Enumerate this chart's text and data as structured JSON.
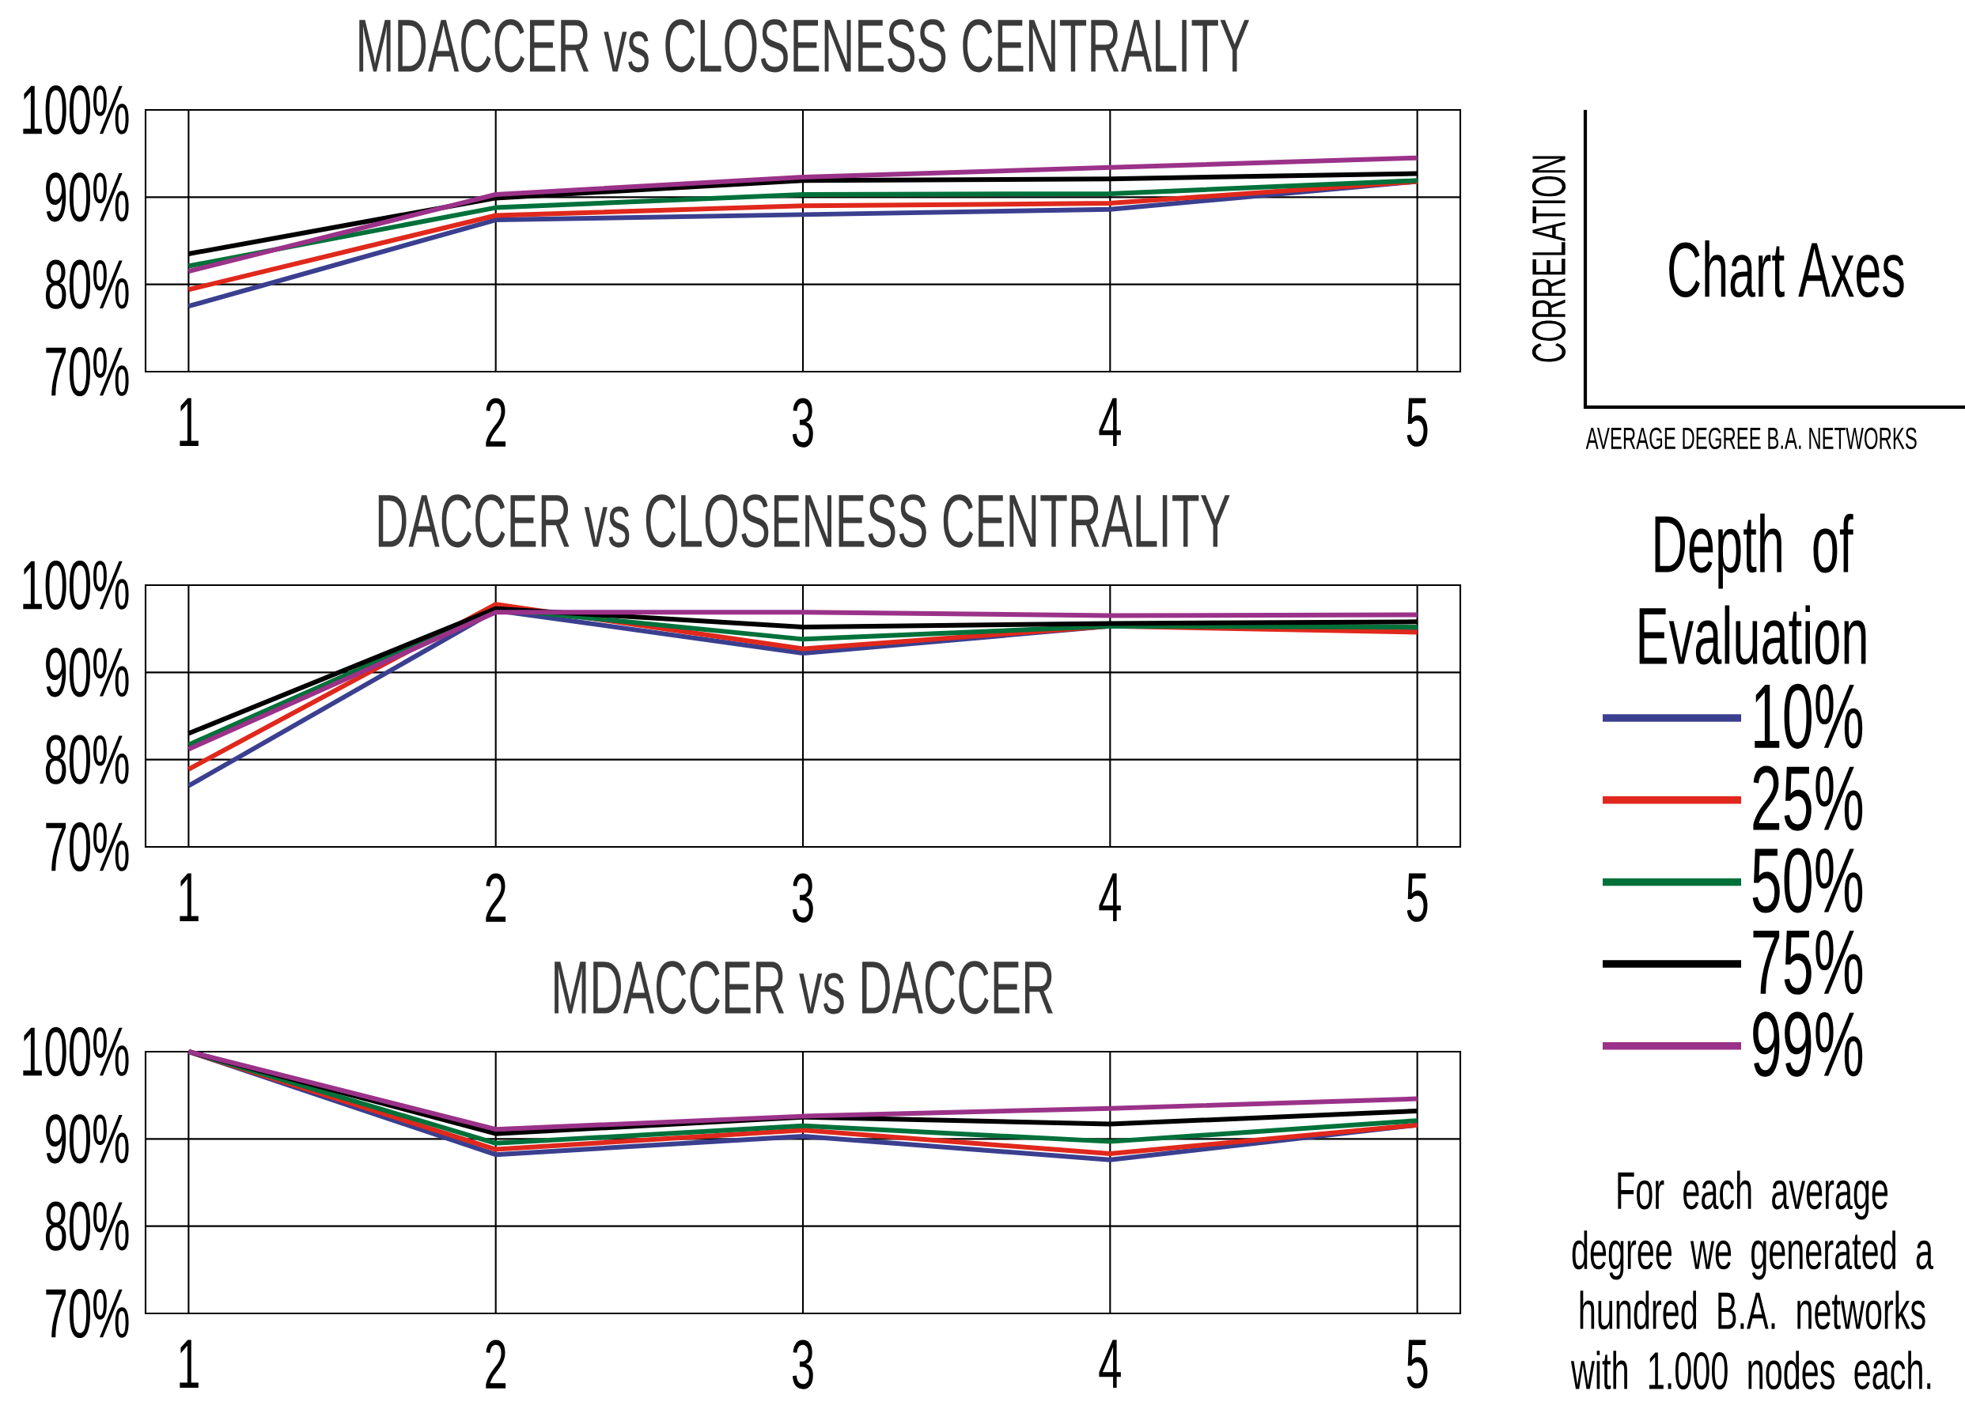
{
  "chart_data": [
    {
      "type": "line",
      "title": "MDACCER vs CLOSENESS CENTRALITY",
      "categories": [
        "1",
        "2",
        "3",
        "4",
        "5"
      ],
      "ylim": [
        70,
        100
      ],
      "yticks": [
        {
          "value": 70,
          "label": "70%"
        },
        {
          "value": 80,
          "label": "80%"
        },
        {
          "value": 90,
          "label": "90%"
        },
        {
          "value": 100,
          "label": "100%"
        }
      ],
      "grid": true,
      "legend": "right",
      "legend_title": "Depth of Evaluation",
      "series": [
        {
          "name": "10%",
          "color": "#3b3f8f",
          "values": [
            77.5,
            87.4,
            88.0,
            88.6,
            91.8
          ]
        },
        {
          "name": "25%",
          "color": "#e0281c",
          "values": [
            79.4,
            87.9,
            89.0,
            89.3,
            91.8
          ]
        },
        {
          "name": "50%",
          "color": "#00713a",
          "values": [
            82.1,
            88.8,
            90.3,
            90.4,
            91.9
          ]
        },
        {
          "name": "75%",
          "color": "#000000",
          "values": [
            83.5,
            89.9,
            91.9,
            92.1,
            92.7
          ]
        },
        {
          "name": "99%",
          "color": "#9b3289",
          "values": [
            81.5,
            90.3,
            92.3,
            93.4,
            94.5
          ]
        }
      ]
    },
    {
      "type": "line",
      "title": "DACCER vs CLOSENESS CENTRALITY",
      "categories": [
        "1",
        "2",
        "3",
        "4",
        "5"
      ],
      "ylim": [
        70,
        100
      ],
      "yticks": [
        {
          "value": 70,
          "label": "70%"
        },
        {
          "value": 80,
          "label": "80%"
        },
        {
          "value": 90,
          "label": "90%"
        },
        {
          "value": 100,
          "label": "100%"
        }
      ],
      "grid": true,
      "series": [
        {
          "color": "#3b3f8f",
          "values": [
            77.0,
            97.1,
            92.2,
            95.3,
            95.1
          ]
        },
        {
          "color": "#e0281c",
          "values": [
            78.9,
            97.8,
            92.7,
            95.3,
            94.6
          ]
        },
        {
          "color": "#00713a",
          "values": [
            81.7,
            97.3,
            93.8,
            95.3,
            95.2
          ]
        },
        {
          "color": "#000000",
          "values": [
            83.0,
            97.3,
            95.2,
            95.6,
            95.8
          ]
        },
        {
          "color": "#9b3289",
          "values": [
            81.2,
            96.9,
            96.9,
            96.5,
            96.6
          ]
        }
      ]
    },
    {
      "type": "line",
      "title": "MDACCER vs DACCER",
      "categories": [
        "1",
        "2",
        "3",
        "4",
        "5"
      ],
      "ylim": [
        70,
        100
      ],
      "yticks": [
        {
          "value": 70,
          "label": "70%"
        },
        {
          "value": 80,
          "label": "80%"
        },
        {
          "value": 90,
          "label": "90%"
        },
        {
          "value": 100,
          "label": "100%"
        }
      ],
      "grid": true,
      "series": [
        {
          "color": "#3b3f8f",
          "values": [
            100,
            88.2,
            90.3,
            87.6,
            91.6
          ]
        },
        {
          "color": "#e0281c",
          "values": [
            100,
            88.8,
            91.0,
            88.3,
            91.6
          ]
        },
        {
          "color": "#00713a",
          "values": [
            100,
            89.5,
            91.5,
            89.7,
            92.1
          ]
        },
        {
          "color": "#000000",
          "values": [
            100,
            90.6,
            92.5,
            91.7,
            93.2
          ]
        },
        {
          "color": "#9b3289",
          "values": [
            100,
            91.1,
            92.6,
            93.5,
            94.6
          ]
        }
      ]
    },
    {
      "type": "other",
      "title": "Chart Axes",
      "xlabel": "AVERAGE DEGREE B.A. NETWORKS",
      "ylabel": "CORRELATION",
      "annotations": [
        "For each average degree we generated a hundred B.A. networks with 1.000 nodes each."
      ]
    }
  ]
}
